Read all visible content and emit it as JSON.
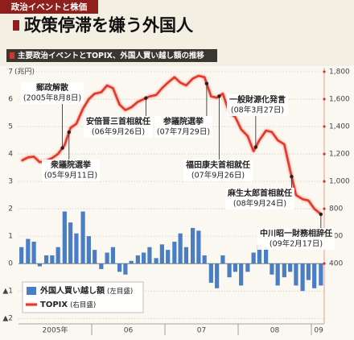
{
  "header": {
    "tag": "政治イベントと株価"
  },
  "chart_data": {
    "type": "bar_line",
    "title": "政策停滞を嫌う外国人",
    "subtitle": "主要政治イベントとTOPIX、外国人買い越し額の推移",
    "y_unit": "(兆円)",
    "x": [
      2005.04,
      2005.13,
      2005.21,
      2005.29,
      2005.38,
      2005.46,
      2005.54,
      2005.63,
      2005.71,
      2005.79,
      2005.88,
      2005.96,
      2006.04,
      2006.13,
      2006.21,
      2006.29,
      2006.38,
      2006.46,
      2006.54,
      2006.63,
      2006.71,
      2006.79,
      2006.88,
      2006.96,
      2007.04,
      2007.13,
      2007.21,
      2007.29,
      2007.38,
      2007.46,
      2007.54,
      2007.63,
      2007.71,
      2007.79,
      2007.88,
      2007.96,
      2008.04,
      2008.13,
      2008.21,
      2008.29,
      2008.38,
      2008.46,
      2008.54,
      2008.63,
      2008.71,
      2008.79,
      2008.88,
      2008.96,
      2009.04,
      2009.13
    ],
    "xlim": [
      2005,
      2009.17
    ],
    "xticks": [
      {
        "value": 2005.5,
        "label": "2005年"
      },
      {
        "value": 2006.5,
        "label": "06"
      },
      {
        "value": 2007.5,
        "label": "07"
      },
      {
        "value": 2008.5,
        "label": "08"
      },
      {
        "value": 2009.1,
        "label": "09"
      }
    ],
    "x_dividers": [
      2006,
      2007,
      2008,
      2009
    ],
    "ylim": [
      -2.2,
      7
    ],
    "yticks": [
      7,
      6,
      5,
      4,
      3,
      2,
      1,
      0,
      {
        "value": -1,
        "label": "▲1"
      },
      {
        "value": -2,
        "label": "▲2"
      }
    ],
    "y2lim": [
      -40,
      1800
    ],
    "y2ticks": [
      {
        "value": 1800,
        "label": "1,800"
      },
      {
        "value": 1600,
        "label": "1,600"
      },
      {
        "value": 1400,
        "label": "1,400"
      },
      {
        "value": 1200,
        "label": "1,200"
      },
      {
        "value": 1000,
        "label": "1,000"
      },
      800,
      600,
      400
    ],
    "grid": true,
    "legend": "lower-left",
    "series": [
      {
        "name": "外国人買い越し額",
        "scale_note": "(左目盛)",
        "type": "bar",
        "color": "#4a7ec4",
        "values": [
          0.6,
          0.9,
          0.8,
          -0.1,
          0.3,
          0.3,
          0.6,
          1.9,
          1.5,
          1.1,
          1.9,
          1.0,
          0.5,
          -0.2,
          0.4,
          0.6,
          -0.3,
          -0.4,
          0.1,
          0.3,
          0.4,
          0.6,
          0.2,
          0.7,
          0.5,
          0.8,
          1.1,
          0.6,
          1.3,
          1.2,
          0.3,
          -0.7,
          -0.9,
          0.3,
          -0.5,
          -0.3,
          -0.8,
          -0.3,
          0.4,
          0.7,
          0.6,
          -0.4,
          -0.8,
          -0.5,
          -0.3,
          -0.8,
          -1.0,
          -0.6,
          -0.9,
          -0.8
        ]
      },
      {
        "name": "TOPIX",
        "scale_note": "(右目盛)",
        "type": "line",
        "axis": "y2",
        "color": "#e3392b",
        "values": [
          1150,
          1175,
          1180,
          1140,
          1150,
          1170,
          1200,
          1265,
          1390,
          1420,
          1530,
          1600,
          1640,
          1650,
          1700,
          1680,
          1560,
          1520,
          1540,
          1580,
          1600,
          1620,
          1630,
          1680,
          1720,
          1760,
          1720,
          1700,
          1750,
          1770,
          1760,
          1620,
          1610,
          1640,
          1500,
          1470,
          1380,
          1330,
          1220,
          1300,
          1370,
          1360,
          1300,
          1270,
          1080,
          900,
          870,
          860,
          800,
          760
        ]
      }
    ],
    "annotations": [
      {
        "label": "郵政解散",
        "date": "(2005年8月8日)",
        "x": 2005.6
      },
      {
        "label": "衆議院選挙",
        "date": "(05年9月11日)",
        "x": 2005.69
      },
      {
        "label": "安倍晋三首相就任",
        "date": "(06年9月26日)",
        "x": 2006.74
      },
      {
        "label": "参議院選挙",
        "date": "(07年7月29日)",
        "x": 2007.57
      },
      {
        "label": "福田康夫首相就任",
        "date": "(07年9月26日)",
        "x": 2007.74
      },
      {
        "label": "一般財源化発言",
        "date": "(08年3月27日)",
        "x": 2008.24
      },
      {
        "label": "麻生太郎首相就任",
        "date": "(08年9月24日)",
        "x": 2008.73
      },
      {
        "label": "中川昭一財務相辞任",
        "date": "(09年2月17日)",
        "x": 2009.13
      }
    ]
  }
}
